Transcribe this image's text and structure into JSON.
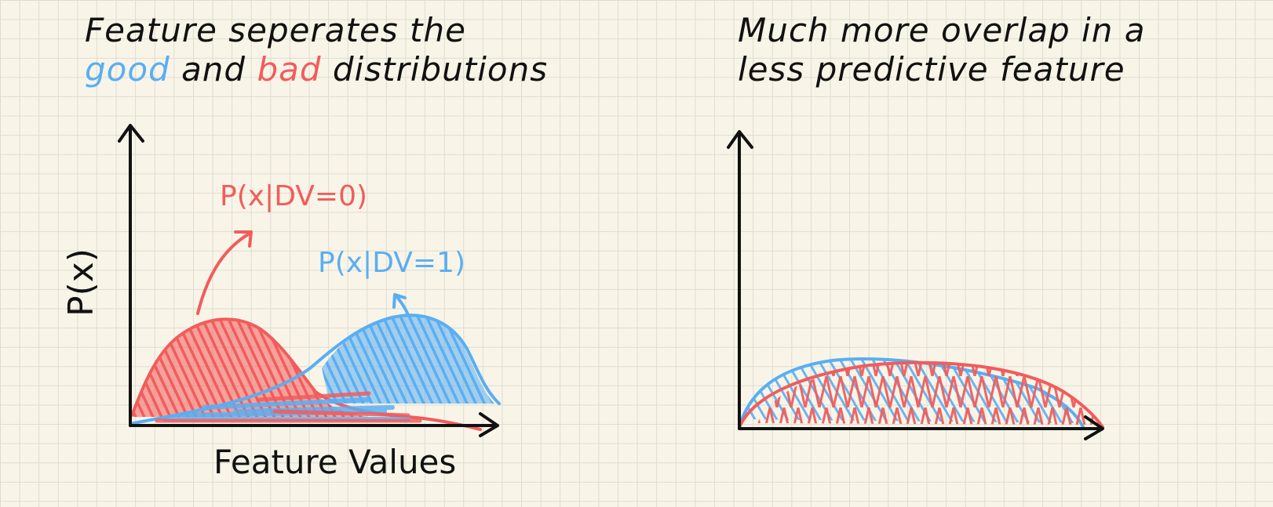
{
  "left_panel": {
    "title_line1": "Feature seperates the",
    "title_good": "good",
    "title_and": " and ",
    "title_bad": "bad",
    "title_rest": " distributions",
    "red_label": "P(x|DV=0)",
    "blue_label": "P(x|DV=1)",
    "y_axis_label": "P(x)",
    "x_axis_label": "Feature Values"
  },
  "right_panel": {
    "title_line1": "Much more overlap in a",
    "title_line2": "less predictive feature"
  },
  "colors": {
    "good": "#5aaef2",
    "bad": "#f25c5c",
    "ink": "#111111",
    "paper": "#f8f5e8"
  }
}
